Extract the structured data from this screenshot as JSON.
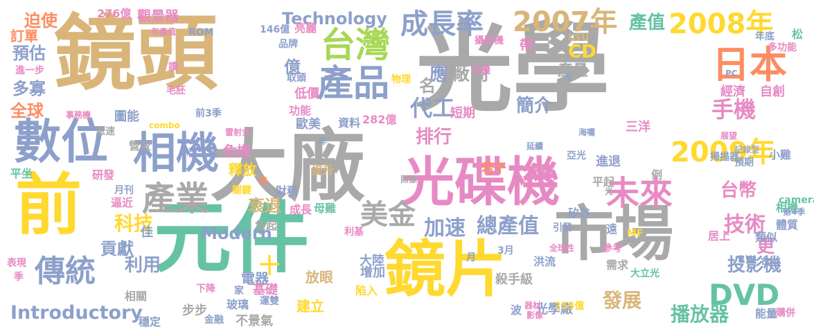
{
  "palette": {
    "gray": "#a9a9a9",
    "tan": "#d9b57a",
    "teal": "#66c2a5",
    "yellow": "#ffd92f",
    "pink": "#e78ac3",
    "blue": "#8da0cb",
    "green": "#a6d854",
    "orange": "#fc8d62"
  },
  "words": [
    {
      "text": "光學",
      "color": "#a9a9a9"
    },
    {
      "text": "鏡頭",
      "color": "#d9b57a"
    },
    {
      "text": "大廠",
      "color": "#a9a9a9"
    },
    {
      "text": "元件",
      "color": "#66c2a5"
    },
    {
      "text": "前",
      "color": "#ffd92f"
    },
    {
      "text": "鏡片",
      "color": "#ffd92f"
    },
    {
      "text": "市場",
      "color": "#a9a9a9"
    },
    {
      "text": "光碟機",
      "color": "#e78ac3"
    },
    {
      "text": "數位",
      "color": "#8da0cb"
    },
    {
      "text": "相機",
      "color": "#8da0cb"
    },
    {
      "text": "產品",
      "color": "#8da0cb"
    },
    {
      "text": "台灣",
      "color": "#a6d854"
    },
    {
      "text": "日本",
      "color": "#fc8d62"
    },
    {
      "text": "成長率",
      "color": "#8da0cb"
    },
    {
      "text": "2007年",
      "color": "#d9b57a"
    },
    {
      "text": "2008年",
      "color": "#ffd92f"
    },
    {
      "text": "2009年",
      "color": "#ffd92f"
    },
    {
      "text": "產業",
      "color": "#a9a9a9"
    },
    {
      "text": "傳統",
      "color": "#8da0cb"
    },
    {
      "text": "未來",
      "color": "#e78ac3"
    },
    {
      "text": "DVD",
      "color": "#66c2a5"
    },
    {
      "text": "Technology",
      "color": "#8da0cb"
    },
    {
      "text": "Introductory",
      "color": "#8da0cb"
    },
    {
      "text": "Modern",
      "color": "#8da0cb"
    },
    {
      "text": "手機",
      "color": "#e78ac3"
    },
    {
      "text": "台幣",
      "color": "#e78ac3"
    },
    {
      "text": "技術",
      "color": "#e78ac3"
    },
    {
      "text": "美金",
      "color": "#a9a9a9"
    },
    {
      "text": "科技",
      "color": "#ffd92f"
    },
    {
      "text": "利用",
      "color": "#8da0cb"
    },
    {
      "text": "加速",
      "color": "#8da0cb"
    },
    {
      "text": "總產值",
      "color": "#8da0cb"
    },
    {
      "text": "代工",
      "color": "#8da0cb"
    },
    {
      "text": "排行",
      "color": "#e78ac3"
    },
    {
      "text": "簡介",
      "color": "#8da0cb"
    },
    {
      "text": "產值",
      "color": "#66c2a5"
    },
    {
      "text": "應",
      "color": "#8da0cb"
    },
    {
      "text": "CD",
      "color": "#ffd92f"
    },
    {
      "text": "產量",
      "color": "#a9a9a9"
    },
    {
      "text": "投影機",
      "color": "#8da0cb"
    },
    {
      "text": "發展",
      "color": "#d9b57a"
    },
    {
      "text": "播放器",
      "color": "#66c2a5"
    },
    {
      "text": "更",
      "color": "#e78ac3"
    },
    {
      "text": "衰退",
      "color": "#d9b57a"
    },
    {
      "text": "貢獻",
      "color": "#8da0cb"
    },
    {
      "text": "全球",
      "color": "#fc8d62"
    },
    {
      "text": "多寡",
      "color": "#8da0cb"
    },
    {
      "text": "預估",
      "color": "#8da0cb"
    },
    {
      "text": "迫使",
      "color": "#fc8d62"
    },
    {
      "text": "訂單",
      "color": "#fc8d62"
    },
    {
      "text": "276億",
      "color": "#e78ac3"
    },
    {
      "text": "觀景器",
      "color": "#e78ac3"
    },
    {
      "text": "年產值",
      "color": "#e78ac3"
    },
    {
      "text": "ROM",
      "color": "#8da0cb"
    },
    {
      "text": "146億",
      "color": "#8da0cb"
    },
    {
      "text": "亮麗",
      "color": "#e78ac3"
    },
    {
      "text": "品牌",
      "color": "#8da0cb"
    },
    {
      "text": "取頭",
      "color": "#8da0cb"
    },
    {
      "text": "低價",
      "color": "#e78ac3"
    },
    {
      "text": "功能",
      "color": "#e78ac3"
    },
    {
      "text": "歐美",
      "color": "#8da0cb"
    },
    {
      "text": "資料",
      "color": "#8da0cb"
    },
    {
      "text": "282億",
      "color": "#e78ac3"
    },
    {
      "text": "短期",
      "color": "#e78ac3"
    },
    {
      "text": "廠商",
      "color": "#a9a9a9"
    },
    {
      "text": "名",
      "color": "#a9a9a9"
    },
    {
      "text": "億",
      "color": "#8da0cb"
    },
    {
      "text": "攝影機",
      "color": "#e78ac3"
    },
    {
      "text": "光機",
      "color": "#e78ac3"
    },
    {
      "text": "帶",
      "color": "#e78ac3"
    },
    {
      "text": "LSU",
      "color": "#d9b57a"
    },
    {
      "text": "年底",
      "color": "#8da0cb"
    },
    {
      "text": "多功能",
      "color": "#e78ac3"
    },
    {
      "text": "松",
      "color": "#66c2a5"
    },
    {
      "text": "經濟",
      "color": "#e78ac3"
    },
    {
      "text": "自創",
      "color": "#e78ac3"
    },
    {
      "text": "PC",
      "color": "#8da0cb"
    },
    {
      "text": "展望",
      "color": "#e78ac3"
    },
    {
      "text": "記錄型",
      "color": "#a9a9a9"
    },
    {
      "text": "掃描器",
      "color": "#8da0cb"
    },
    {
      "text": "預期",
      "color": "#8da0cb"
    },
    {
      "text": "小雞",
      "color": "#8da0cb"
    },
    {
      "text": "三洋",
      "color": "#e78ac3"
    },
    {
      "text": "亞光",
      "color": "#8da0cb"
    },
    {
      "text": "延續",
      "color": "#8da0cb"
    },
    {
      "text": "海嘯",
      "color": "#8da0cb"
    },
    {
      "text": "若干",
      "color": "#fc8d62"
    },
    {
      "text": "併購",
      "color": "#e78ac3"
    },
    {
      "text": "提升",
      "color": "#d9b57a"
    },
    {
      "text": "進退",
      "color": "#8da0cb"
    },
    {
      "text": "平起",
      "color": "#a9a9a9"
    },
    {
      "text": "例",
      "color": "#a9a9a9"
    },
    {
      "text": "camera",
      "color": "#66c2a5"
    },
    {
      "text": "相機",
      "color": "#66c2a5"
    },
    {
      "text": "體質",
      "color": "#8da0cb"
    },
    {
      "text": "第4季",
      "color": "#8da0cb"
    },
    {
      "text": "類似",
      "color": "#8da0cb"
    },
    {
      "text": "遠",
      "color": "#8da0cb"
    },
    {
      "text": "矽谷",
      "color": "#8da0cb"
    },
    {
      "text": "引發",
      "color": "#8da0cb"
    },
    {
      "text": "MF",
      "color": "#ffd92f"
    },
    {
      "text": "參考",
      "color": "#e78ac3"
    },
    {
      "text": "全球性",
      "color": "#e78ac3"
    },
    {
      "text": "居上",
      "color": "#e78ac3"
    },
    {
      "text": "需求",
      "color": "#a9a9a9"
    },
    {
      "text": "RW",
      "color": "#8da0cb"
    },
    {
      "text": "含",
      "color": "#8da0cb"
    },
    {
      "text": "大立光",
      "color": "#66c2a5"
    },
    {
      "text": "洪流",
      "color": "#8da0cb"
    },
    {
      "text": "殺手級",
      "color": "#a9a9a9"
    },
    {
      "text": "光學廠",
      "color": "#8da0cb"
    },
    {
      "text": "波",
      "color": "#8da0cb"
    },
    {
      "text": "器材",
      "color": "#e78ac3"
    },
    {
      "text": "影像",
      "color": "#e78ac3"
    },
    {
      "text": "255億",
      "color": "#ffd92f"
    },
    {
      "text": "能量",
      "color": "#8da0cb"
    },
    {
      "text": "購併",
      "color": "#e78ac3"
    },
    {
      "text": "3月",
      "color": "#8da0cb"
    },
    {
      "text": "月",
      "color": "#8da0cb"
    },
    {
      "text": "大陸",
      "color": "#8da0cb"
    },
    {
      "text": "增加",
      "color": "#8da0cb"
    },
    {
      "text": "陷入",
      "color": "#ffd92f"
    },
    {
      "text": "放眼",
      "color": "#d9b57a"
    },
    {
      "text": "建立",
      "color": "#ffd92f"
    },
    {
      "text": "利基",
      "color": "#e78ac3"
    },
    {
      "text": "母雞",
      "color": "#66c2a5"
    },
    {
      "text": "負起",
      "color": "#a9a9a9"
    },
    {
      "text": "照像",
      "color": "#a9a9a9"
    },
    {
      "text": "財務",
      "color": "#8da0cb"
    },
    {
      "text": "成長",
      "color": "#e78ac3"
    },
    {
      "text": "兩",
      "color": "#fc8d62"
    },
    {
      "text": "關鍵",
      "color": "#ffd92f"
    },
    {
      "text": "釋放",
      "color": "#ffd92f"
    },
    {
      "text": "危機",
      "color": "#e78ac3"
    },
    {
      "text": "雷射式",
      "color": "#e78ac3"
    },
    {
      "text": "年",
      "color": "#8da0cb"
    },
    {
      "text": "圖能",
      "color": "#8da0cb"
    },
    {
      "text": "combo",
      "color": "#ffd92f"
    },
    {
      "text": "營收",
      "color": "#a9a9a9"
    },
    {
      "text": "前3季",
      "color": "#8da0cb"
    },
    {
      "text": "研發",
      "color": "#e78ac3"
    },
    {
      "text": "平坐",
      "color": "#66c2a5"
    },
    {
      "text": "月刊",
      "color": "#8da0cb"
    },
    {
      "text": "逼近",
      "color": "#e78ac3"
    },
    {
      "text": "佳",
      "color": "#8da0cb"
    },
    {
      "text": "十",
      "color": "#ffd92f"
    },
    {
      "text": "電器",
      "color": "#8da0cb"
    },
    {
      "text": "家",
      "color": "#8da0cb"
    },
    {
      "text": "基礎",
      "color": "#e78ac3"
    },
    {
      "text": "玻璃",
      "color": "#8da0cb"
    },
    {
      "text": "運雙",
      "color": "#8da0cb"
    },
    {
      "text": "下降",
      "color": "#e78ac3"
    },
    {
      "text": "相關",
      "color": "#a9a9a9"
    },
    {
      "text": "步步",
      "color": "#a9a9a9"
    },
    {
      "text": "穩定",
      "color": "#8da0cb"
    },
    {
      "text": "金融",
      "color": "#8da0cb"
    },
    {
      "text": "不景氣",
      "color": "#a9a9a9"
    },
    {
      "text": "表現",
      "color": "#e78ac3"
    },
    {
      "text": "季",
      "color": "#e78ac3"
    },
    {
      "text": "事務機",
      "color": "#e78ac3"
    },
    {
      "text": "急速",
      "color": "#a9a9a9"
    },
    {
      "text": "毛胚",
      "color": "#e78ac3"
    },
    {
      "text": "讀",
      "color": "#e78ac3"
    },
    {
      "text": "進一步",
      "color": "#e78ac3"
    },
    {
      "text": "物理",
      "color": "#ffd92f"
    },
    {
      "text": "全",
      "color": "#8da0cb"
    },
    {
      "text": "光",
      "color": "#a9a9a9"
    }
  ]
}
